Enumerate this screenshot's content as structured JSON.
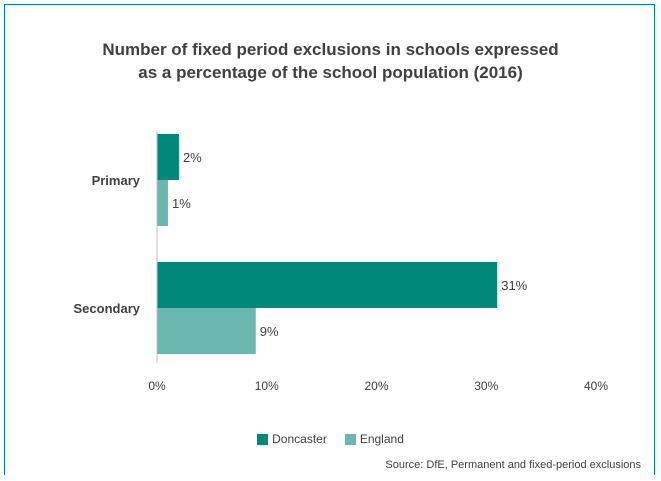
{
  "chart_data": {
    "type": "bar",
    "orientation": "horizontal",
    "title_lines": [
      "Number of fixed period exclusions in schools expressed",
      "as a percentage of the school population (2016)"
    ],
    "categories": [
      "Primary",
      "Secondary"
    ],
    "series": [
      {
        "name": "Doncaster",
        "color": "#00897b",
        "values": [
          2,
          31
        ],
        "labels": [
          "2%",
          "31%"
        ]
      },
      {
        "name": "England",
        "color": "#6cb8b0",
        "values": [
          1,
          9
        ],
        "labels": [
          "1%",
          "9%"
        ]
      }
    ],
    "xlim": [
      0,
      40
    ],
    "xticks": [
      0,
      10,
      20,
      30,
      40
    ],
    "xtick_labels": [
      "0%",
      "10%",
      "20%",
      "30%",
      "40%"
    ],
    "grid": false,
    "legend_position": "bottom"
  },
  "source": "Source: DfE, Permanent and fixed-period exclusions"
}
